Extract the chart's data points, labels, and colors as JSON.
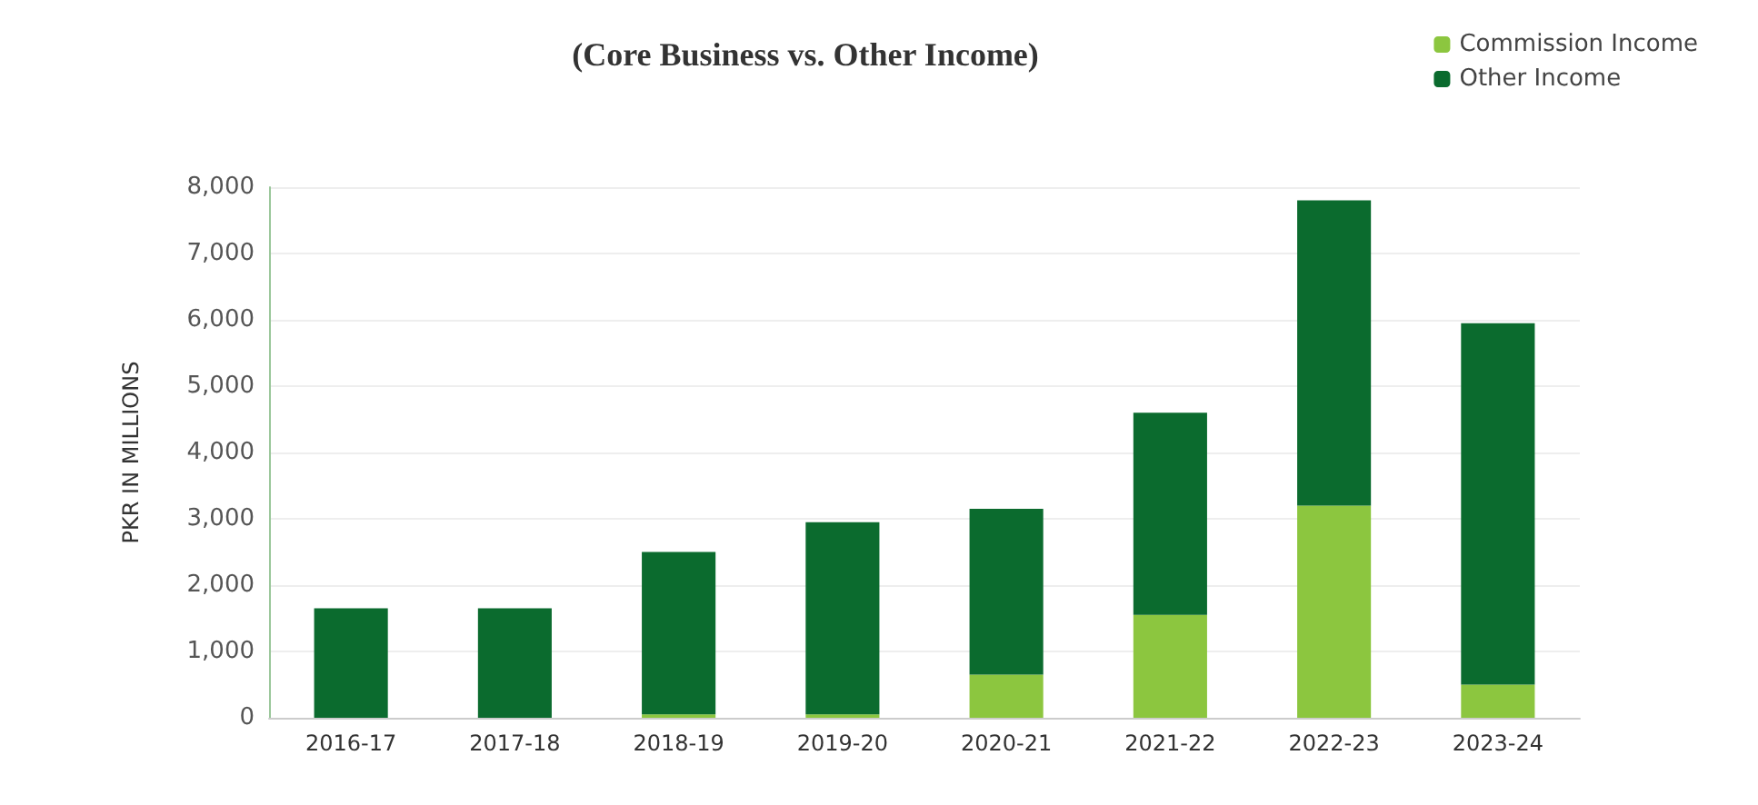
{
  "chart_data": {
    "type": "bar",
    "title": "(Core Business vs. Other Income)",
    "ylabel": "PKR IN MILLIONS",
    "categories": [
      "2016-17",
      "2017-18",
      "2018-19",
      "2019-20",
      "2020-21",
      "2021-22",
      "2022-23",
      "2023-24"
    ],
    "series": [
      {
        "name": "Commission Income",
        "color": "#8cc63f",
        "values": [
          0,
          0,
          50,
          50,
          650,
          1550,
          3200,
          500
        ]
      },
      {
        "name": "Other Income",
        "color": "#0b6b2e",
        "values": [
          1650,
          1650,
          2450,
          2900,
          2500,
          3050,
          4600,
          5450
        ]
      }
    ],
    "stacked": true,
    "ylim": [
      0,
      8000
    ],
    "yticks": [
      0,
      {
        "value": 1000,
        "label": "1,000"
      },
      {
        "value": 2000,
        "label": "2,000"
      },
      {
        "value": 3000,
        "label": "3,000"
      },
      {
        "value": 4000,
        "label": "4,000"
      },
      {
        "value": 5000,
        "label": "5,000"
      },
      {
        "value": 6000,
        "label": "6,000"
      },
      {
        "value": 7000,
        "label": "7,000"
      },
      {
        "value": 8000,
        "label": "8,000"
      }
    ],
    "grid": "y",
    "legend": "top right"
  }
}
